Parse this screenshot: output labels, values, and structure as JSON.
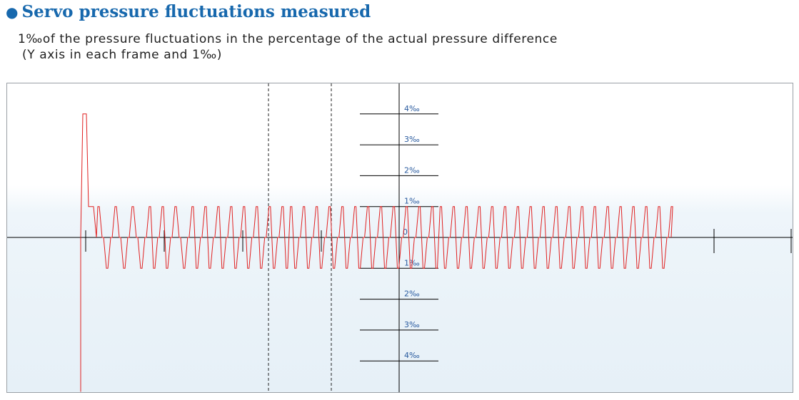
{
  "header": {
    "bullet": "●",
    "title": "Servo pressure fluctuations measured",
    "desc_line1": "1‰of the pressure fluctuations in the percentage of the actual pressure difference",
    "desc_line2": "(Y axis in each frame and 1‰)"
  },
  "colors": {
    "title": "#1768ad",
    "signal": "#e02020",
    "axis": "#000000",
    "tick_label": "#2a5b9f"
  },
  "chart_data": {
    "type": "line",
    "title": "",
    "xlabel": "",
    "ylabel": "",
    "ylim": [
      -4,
      4
    ],
    "y_unit": "‰",
    "y_tick_labels": [
      {
        "value": 4,
        "label": "4‰"
      },
      {
        "value": 3,
        "label": "3‰"
      },
      {
        "value": 2,
        "label": "2‰"
      },
      {
        "value": 1,
        "label": "1‰"
      },
      {
        "value": 0,
        "label": "0"
      },
      {
        "value": -1,
        "label": "1‰"
      },
      {
        "value": -2,
        "label": "2‰"
      },
      {
        "value": -3,
        "label": "3‰"
      },
      {
        "value": -4,
        "label": "4‰"
      }
    ],
    "grid": false,
    "legend": "none",
    "series": [
      {
        "color": "#e02020",
        "initial_spike_peak": 4,
        "initial_plateau": 1,
        "initial_dip": -5,
        "oscillation_amplitude": 1,
        "oscillation_levels": [
          1,
          0,
          -1
        ],
        "pattern": [
          1,
          0,
          -1,
          0,
          1,
          0,
          -1,
          0,
          1,
          0,
          -1,
          0,
          1,
          -1,
          0,
          1,
          -1,
          0,
          1,
          0,
          -1,
          0,
          1,
          -1,
          0,
          1,
          -1,
          0,
          1,
          -1,
          0,
          1,
          -1,
          0,
          1,
          -1,
          0,
          1,
          -1,
          0,
          1,
          -1,
          0,
          1,
          -1,
          1,
          -1,
          0,
          1,
          -1,
          0,
          1,
          -1,
          0,
          1,
          -1,
          0,
          1,
          -1,
          0,
          1,
          -1,
          0,
          1,
          -1,
          0,
          1,
          -1,
          0,
          1,
          -1,
          0,
          1,
          -1,
          0,
          1,
          -1,
          0,
          1,
          -1,
          1,
          -1,
          0,
          1,
          -1,
          0,
          1,
          -1,
          0,
          1,
          -1,
          0,
          1,
          -1,
          0,
          1,
          -1,
          0,
          1,
          -1,
          0,
          1,
          -1,
          0,
          1,
          -1,
          0,
          1,
          -1,
          0,
          1,
          -1,
          0,
          1,
          -1,
          0,
          1,
          -1,
          0,
          1,
          -1,
          0,
          1,
          -1,
          0,
          1,
          -1,
          0,
          1,
          -1,
          0,
          1,
          -1,
          0,
          1
        ]
      }
    ]
  }
}
